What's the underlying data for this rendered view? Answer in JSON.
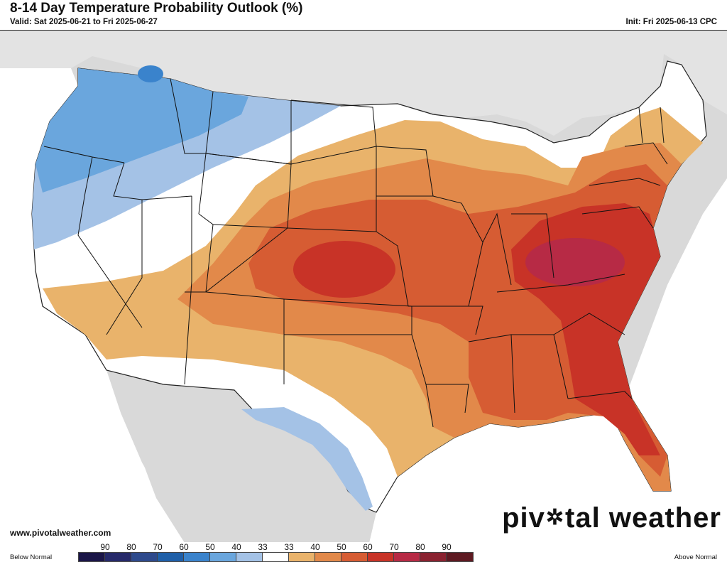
{
  "header": {
    "title": "8-14 Day Temperature Probability Outlook (%)",
    "valid": "Valid: Sat 2025-06-21 to Fri 2025-06-27",
    "init": "Init: Fri 2025-06-13 CPC"
  },
  "footer": {
    "site_url": "www.pivotalweather.com",
    "brand_part1": "piv",
    "brand_part2": "tal weather"
  },
  "legend": {
    "below_label": "Below Normal",
    "above_label": "Above Normal",
    "ticks": [
      "90",
      "80",
      "70",
      "60",
      "50",
      "40",
      "33",
      "33",
      "40",
      "50",
      "60",
      "70",
      "80",
      "90"
    ],
    "swatch_colors": [
      "#1b1648",
      "#262a6a",
      "#2e4a8c",
      "#1f5fa8",
      "#3a83cc",
      "#6aa6dd",
      "#a4c2e6",
      "#ffffff",
      "#e9b36b",
      "#e2894a",
      "#d65c33",
      "#c83327",
      "#b72a45",
      "#8a2230",
      "#5e1a22"
    ]
  },
  "map": {
    "land_color": "#ffffff",
    "surrounding_land_color": "#d9d9d9",
    "water_color": "#ffffff",
    "region_colors": {
      "below_40": "#a4c2e6",
      "below_50": "#6aa6dd",
      "below_60": "#3a83cc",
      "near_normal": "#ffffff",
      "above_33": "#e9b36b",
      "above_40": "#e2894a",
      "above_50": "#d65c33",
      "above_60": "#c83327",
      "above_70": "#b72a45"
    }
  }
}
